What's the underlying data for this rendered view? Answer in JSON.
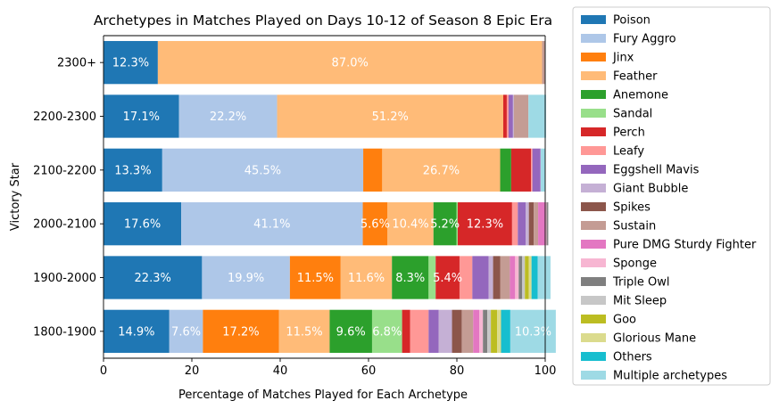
{
  "chart_data": {
    "type": "bar",
    "orientation": "horizontal",
    "stacked": true,
    "title": "Archetypes in Matches Played on Days 10-12 of Season 8 Epic Era",
    "xlabel": "Percentage of Matches Played for Each Archetype",
    "ylabel": "Victory Star",
    "xlim": [
      0,
      100
    ],
    "xticks": [
      "0",
      "20",
      "40",
      "60",
      "80",
      "100"
    ],
    "grid": false,
    "legend_position": "outside-right",
    "categories": [
      "2300+",
      "2200-2300",
      "2100-2200",
      "2000-2100",
      "1900-2000",
      "1800-1900"
    ],
    "series": [
      {
        "name": "Poison",
        "color": "#1f77b4",
        "values": [
          12.3,
          17.1,
          13.3,
          17.6,
          22.3,
          14.9
        ]
      },
      {
        "name": "Fury Aggro",
        "color": "#aec7e8",
        "values": [
          0,
          22.2,
          45.5,
          41.1,
          19.9,
          7.6
        ]
      },
      {
        "name": "Jinx",
        "color": "#ff7f0e",
        "values": [
          0,
          0,
          4.3,
          5.6,
          11.5,
          17.2
        ]
      },
      {
        "name": "Feather",
        "color": "#ffbb78",
        "values": [
          87.0,
          51.2,
          26.7,
          10.4,
          11.6,
          11.5
        ]
      },
      {
        "name": "Anemone",
        "color": "#2ca02c",
        "values": [
          0,
          0,
          2.5,
          5.2,
          8.3,
          9.6
        ]
      },
      {
        "name": "Sandal",
        "color": "#98df8a",
        "values": [
          0,
          0,
          0,
          0.3,
          1.6,
          6.8
        ]
      },
      {
        "name": "Perch",
        "color": "#d62728",
        "values": [
          0,
          0.8,
          4.5,
          12.3,
          5.4,
          1.8
        ]
      },
      {
        "name": "Leafy",
        "color": "#ff9896",
        "values": [
          0,
          0.4,
          0.3,
          1.3,
          2.9,
          4.2
        ]
      },
      {
        "name": "Eggshell Mavis",
        "color": "#9467bd",
        "values": [
          0,
          1.0,
          1.8,
          1.8,
          3.7,
          2.3
        ]
      },
      {
        "name": "Giant Bubble",
        "color": "#c5b0d5",
        "values": [
          0,
          0.2,
          0.1,
          0.7,
          1.0,
          3.0
        ]
      },
      {
        "name": "Spikes",
        "color": "#8c564b",
        "values": [
          0,
          0,
          0,
          1.1,
          1.6,
          2.2
        ]
      },
      {
        "name": "Sustain",
        "color": "#c49c94",
        "values": [
          0.7,
          3.3,
          0,
          1.0,
          2.2,
          2.6
        ]
      },
      {
        "name": "Pure DMG Sturdy Fighter",
        "color": "#e377c2",
        "values": [
          0,
          0,
          0,
          1.5,
          1.2,
          1.4
        ]
      },
      {
        "name": "Sponge",
        "color": "#f7b6d2",
        "values": [
          0,
          0,
          0,
          0.4,
          0.8,
          0.8
        ]
      },
      {
        "name": "Triple Owl",
        "color": "#7f7f7f",
        "values": [
          0,
          0,
          0,
          0.3,
          0.8,
          1.0
        ]
      },
      {
        "name": "Mit Sleep",
        "color": "#c7c7c7",
        "values": [
          0,
          0,
          0,
          0.2,
          0.6,
          0.8
        ]
      },
      {
        "name": "Goo",
        "color": "#bcbd22",
        "values": [
          0,
          0,
          0,
          0,
          0.9,
          1.4
        ]
      },
      {
        "name": "Glorious Mane",
        "color": "#dbdb8d",
        "values": [
          0,
          0,
          0,
          0,
          0.6,
          0.9
        ]
      },
      {
        "name": "Others",
        "color": "#17becf",
        "values": [
          0,
          0,
          0,
          0,
          1.4,
          2.1
        ]
      },
      {
        "name": "Multiple archetypes",
        "color": "#9edae5",
        "values": [
          0,
          4.0,
          1.0,
          0,
          2.9,
          10.3
        ]
      }
    ],
    "data_labels": [
      {
        "category": "2300+",
        "series": "Poison",
        "text": "12.3%"
      },
      {
        "category": "2300+",
        "series": "Feather",
        "text": "87.0%"
      },
      {
        "category": "2200-2300",
        "series": "Poison",
        "text": "17.1%"
      },
      {
        "category": "2200-2300",
        "series": "Fury Aggro",
        "text": "22.2%"
      },
      {
        "category": "2200-2300",
        "series": "Feather",
        "text": "51.2%"
      },
      {
        "category": "2100-2200",
        "series": "Poison",
        "text": "13.3%"
      },
      {
        "category": "2100-2200",
        "series": "Fury Aggro",
        "text": "45.5%"
      },
      {
        "category": "2100-2200",
        "series": "Feather",
        "text": "26.7%"
      },
      {
        "category": "2000-2100",
        "series": "Poison",
        "text": "17.6%"
      },
      {
        "category": "2000-2100",
        "series": "Fury Aggro",
        "text": "41.1%"
      },
      {
        "category": "2000-2100",
        "series": "Jinx",
        "text": "5.6%"
      },
      {
        "category": "2000-2100",
        "series": "Feather",
        "text": "10.4%"
      },
      {
        "category": "2000-2100",
        "series": "Anemone",
        "text": "5.2%"
      },
      {
        "category": "2000-2100",
        "series": "Perch",
        "text": "12.3%"
      },
      {
        "category": "1900-2000",
        "series": "Poison",
        "text": "22.3%"
      },
      {
        "category": "1900-2000",
        "series": "Fury Aggro",
        "text": "19.9%"
      },
      {
        "category": "1900-2000",
        "series": "Jinx",
        "text": "11.5%"
      },
      {
        "category": "1900-2000",
        "series": "Feather",
        "text": "11.6%"
      },
      {
        "category": "1900-2000",
        "series": "Anemone",
        "text": "8.3%"
      },
      {
        "category": "1900-2000",
        "series": "Perch",
        "text": "5.4%"
      },
      {
        "category": "1800-1900",
        "series": "Poison",
        "text": "14.9%"
      },
      {
        "category": "1800-1900",
        "series": "Fury Aggro",
        "text": "7.6%"
      },
      {
        "category": "1800-1900",
        "series": "Jinx",
        "text": "17.2%"
      },
      {
        "category": "1800-1900",
        "series": "Feather",
        "text": "11.5%"
      },
      {
        "category": "1800-1900",
        "series": "Anemone",
        "text": "9.6%"
      },
      {
        "category": "1800-1900",
        "series": "Sandal",
        "text": "6.8%"
      },
      {
        "category": "1800-1900",
        "series": "Multiple archetypes",
        "text": "10.3%"
      }
    ]
  }
}
